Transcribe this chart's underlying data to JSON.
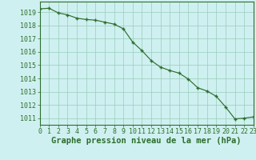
{
  "x": [
    0,
    1,
    2,
    3,
    4,
    5,
    6,
    7,
    8,
    9,
    10,
    11,
    12,
    13,
    14,
    15,
    16,
    17,
    18,
    19,
    20,
    21,
    22,
    23
  ],
  "y": [
    1019.25,
    1019.3,
    1018.95,
    1018.8,
    1018.55,
    1018.45,
    1018.4,
    1018.25,
    1018.1,
    1017.75,
    1016.75,
    1016.1,
    1015.35,
    1014.85,
    1014.6,
    1014.4,
    1013.95,
    1013.3,
    1013.05,
    1012.65,
    1011.85,
    1010.95,
    1011.0,
    1011.1
  ],
  "xlim": [
    0,
    23
  ],
  "ylim": [
    1010.5,
    1019.8
  ],
  "yticks": [
    1011,
    1012,
    1013,
    1014,
    1015,
    1016,
    1017,
    1018,
    1019
  ],
  "xticks": [
    0,
    1,
    2,
    3,
    4,
    5,
    6,
    7,
    8,
    9,
    10,
    11,
    12,
    13,
    14,
    15,
    16,
    17,
    18,
    19,
    20,
    21,
    22,
    23
  ],
  "xlabel": "Graphe pression niveau de la mer (hPa)",
  "line_color": "#2d6e2d",
  "marker": "+",
  "bg_color": "#cff0f0",
  "grid_color": "#99ccbb",
  "tick_fontsize": 6.0,
  "label_fontsize": 7.5
}
